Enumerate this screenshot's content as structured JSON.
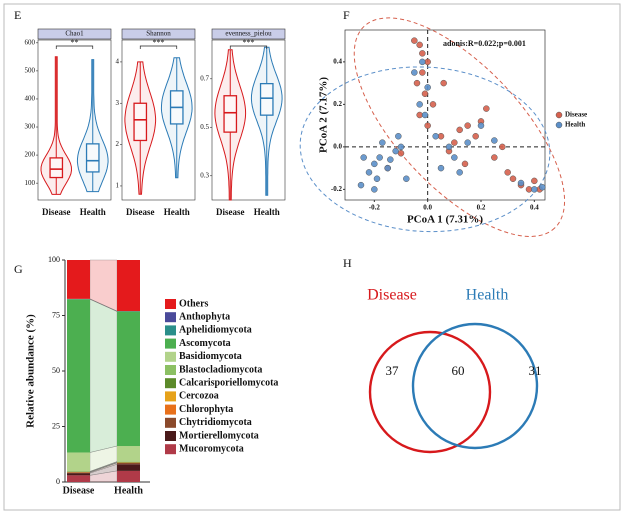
{
  "chart_data": [
    {
      "type": "violin",
      "panel": "E",
      "title": "Chao1",
      "categories": [
        "Disease",
        "Health"
      ],
      "colors": [
        "#d7191c",
        "#2c7bb6"
      ],
      "values": [
        {
          "min": 60,
          "q1": 120,
          "median": 150,
          "q3": 190,
          "max": 550
        },
        {
          "min": 70,
          "q1": 140,
          "median": 180,
          "q3": 240,
          "max": 540
        }
      ],
      "significance": "**",
      "ylim": [
        40,
        610
      ],
      "yticks": [
        100,
        200,
        300,
        400,
        500,
        600
      ]
    },
    {
      "type": "violin",
      "title": "Shannon",
      "categories": [
        "Disease",
        "Health"
      ],
      "colors": [
        "#d7191c",
        "#2c7bb6"
      ],
      "values": [
        {
          "min": 0.8,
          "q1": 2.1,
          "median": 2.6,
          "q3": 3.0,
          "max": 4.0
        },
        {
          "min": 1.2,
          "q1": 2.5,
          "median": 2.9,
          "q3": 3.3,
          "max": 4.1
        }
      ],
      "significance": "***",
      "ylim": [
        0.66,
        4.53
      ],
      "yticks": [
        1,
        2,
        3,
        4
      ]
    },
    {
      "type": "violin",
      "title": "evenness_pielou",
      "categories": [
        "Disease",
        "Health"
      ],
      "colors": [
        "#d7191c",
        "#2c7bb6"
      ],
      "values": [
        {
          "min": 0.2,
          "q1": 0.48,
          "median": 0.56,
          "q3": 0.63,
          "max": 0.82
        },
        {
          "min": 0.22,
          "q1": 0.55,
          "median": 0.62,
          "q3": 0.68,
          "max": 0.83
        }
      ],
      "significance": "***",
      "ylim": [
        0.2,
        0.86
      ],
      "yticks": [
        0.3,
        0.5,
        0.7
      ]
    },
    {
      "type": "scatter",
      "panel": "F",
      "annotation": "adonis:R=0.022;p=0.001",
      "x_label": "PCoA 1 (7.31%)",
      "y_label": "PCoA 2 (7.17%)",
      "xlim": [
        -0.31,
        0.44
      ],
      "ylim": [
        -0.25,
        0.55
      ],
      "xticks": [
        -0.2,
        {
          "value": 0,
          "label": "0.0"
        },
        0.2,
        0.4
      ],
      "yticks": [
        -0.2,
        {
          "value": 0,
          "label": "0.0"
        },
        0.2,
        0.4
      ],
      "series": [
        {
          "name": "Disease",
          "color": "#d6604d",
          "x": [
            -0.05,
            -0.03,
            -0.02,
            0.0,
            -0.04,
            -0.01,
            0.02,
            -0.03,
            0.12,
            0.15,
            0.18,
            0.2,
            0.22,
            0.1,
            0.08,
            0.05,
            0.3,
            0.32,
            0.35,
            0.38,
            0.42,
            0.4,
            0.25,
            -0.1,
            -0.15,
            0.0,
            0.06,
            0.14,
            -0.02,
            0.28
          ],
          "y": [
            0.5,
            0.48,
            0.44,
            0.4,
            0.3,
            0.25,
            0.2,
            0.15,
            0.08,
            0.1,
            0.05,
            0.12,
            0.18,
            0.02,
            -0.02,
            0.05,
            -0.12,
            -0.15,
            -0.18,
            -0.2,
            -0.2,
            -0.16,
            -0.05,
            -0.03,
            -0.1,
            0.1,
            0.3,
            -0.08,
            0.35,
            0.0
          ]
        },
        {
          "name": "Health",
          "color": "#5b8fc9",
          "x": [
            -0.25,
            -0.22,
            -0.2,
            -0.18,
            -0.15,
            -0.12,
            -0.1,
            -0.08,
            -0.2,
            -0.17,
            -0.14,
            -0.05,
            -0.02,
            0.0,
            0.03,
            0.08,
            0.1,
            0.15,
            0.2,
            0.35,
            0.4,
            0.43,
            -0.03,
            -0.01,
            0.05,
            -0.24,
            -0.19,
            -0.11,
            0.25,
            0.12
          ],
          "y": [
            -0.18,
            -0.12,
            -0.08,
            -0.05,
            -0.1,
            -0.02,
            0.0,
            -0.15,
            -0.2,
            0.02,
            -0.06,
            0.35,
            0.4,
            0.28,
            0.05,
            0.0,
            -0.05,
            0.02,
            0.1,
            -0.17,
            -0.2,
            -0.19,
            0.2,
            0.15,
            -0.1,
            -0.05,
            -0.15,
            0.05,
            0.03,
            -0.12
          ]
        }
      ]
    },
    {
      "type": "stacked_bar",
      "panel": "G",
      "y_label": "Relative abundance (%)",
      "categories": [
        "Disease",
        "Health"
      ],
      "ylim": [
        0,
        100
      ],
      "yticks": [
        0,
        25,
        50,
        75,
        100
      ],
      "series": [
        {
          "name": "Others",
          "color": "#e41a1c",
          "values": [
            17.5,
            23
          ]
        },
        {
          "name": "Anthophyta",
          "color": "#4a4a9a",
          "values": [
            0.1,
            0.1
          ]
        },
        {
          "name": "Aphelidiomycota",
          "color": "#2a8f8a",
          "values": [
            0.1,
            0.1
          ]
        },
        {
          "name": "Ascomycota",
          "color": "#4caf50",
          "values": [
            69,
            60.6
          ]
        },
        {
          "name": "Basidiomycota",
          "color": "#b2d38a",
          "values": [
            8.5,
            7
          ]
        },
        {
          "name": "Blastocladiomycota",
          "color": "#8cc063",
          "values": [
            0.1,
            0.1
          ]
        },
        {
          "name": "Calcarisporiellomycota",
          "color": "#5c8a2a",
          "values": [
            0.2,
            0.3
          ]
        },
        {
          "name": "Cercozoa",
          "color": "#e6a21a",
          "values": [
            0.1,
            0.1
          ]
        },
        {
          "name": "Chlorophyta",
          "color": "#e8701a",
          "values": [
            0.1,
            0.1
          ]
        },
        {
          "name": "Chytridiomycota",
          "color": "#8b4a2b",
          "values": [
            0.3,
            0.6
          ]
        },
        {
          "name": "Mortierellomycota",
          "color": "#4a1a1a",
          "values": [
            1,
            3
          ]
        },
        {
          "name": "Mucoromycota",
          "color": "#b03a48",
          "values": [
            3,
            5
          ]
        }
      ]
    },
    {
      "type": "venn",
      "panel": "H",
      "sets": [
        {
          "name": "Disease",
          "color": "#d7191c"
        },
        {
          "name": "Health",
          "color": "#2c7bb6"
        }
      ],
      "values": [
        37,
        60,
        31
      ]
    }
  ]
}
